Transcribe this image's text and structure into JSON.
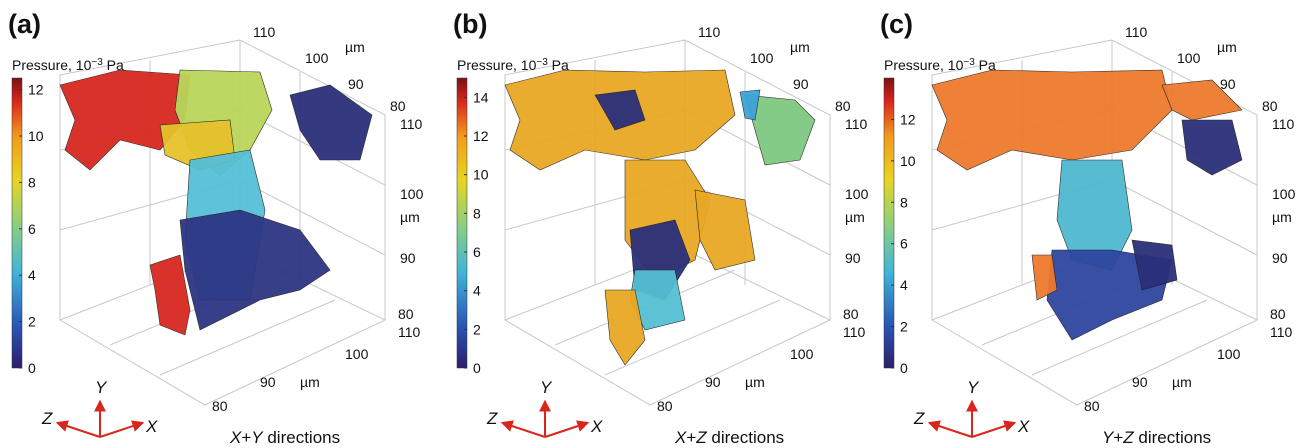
{
  "panels": [
    {
      "label": "(a)",
      "colorbar": {
        "title_parts": [
          "Pressure, 10",
          "−3",
          " Pa"
        ],
        "range": [
          0,
          12.5
        ],
        "ticks": [
          0,
          2,
          4,
          6,
          8,
          10,
          12
        ]
      },
      "box_ticks": {
        "back": [
          110,
          100,
          90,
          80
        ],
        "side": [
          110,
          100,
          90,
          80
        ],
        "front": [
          110,
          100,
          90,
          80
        ]
      },
      "unit": "µm",
      "triad": {
        "x": "X",
        "y": "Y",
        "z": "Z"
      },
      "caption_parts": [
        "X",
        "+",
        "Y",
        " directions"
      ]
    },
    {
      "label": "(b)",
      "colorbar": {
        "title_parts": [
          "Pressure, 10",
          "−3",
          " Pa"
        ],
        "range": [
          0,
          15
        ],
        "ticks": [
          0,
          2,
          4,
          6,
          8,
          10,
          12,
          14
        ]
      },
      "box_ticks": {
        "back": [
          110,
          100,
          90,
          80
        ],
        "side": [
          110,
          100,
          90,
          80
        ],
        "front": [
          110,
          100,
          90,
          80
        ]
      },
      "unit": "µm",
      "triad": {
        "x": "X",
        "y": "Y",
        "z": "Z"
      },
      "caption_parts": [
        "X",
        "+",
        "Z",
        " directions"
      ]
    },
    {
      "label": "(c)",
      "colorbar": {
        "title_parts": [
          "Pressure, 10",
          "−3",
          " Pa"
        ],
        "range": [
          0,
          14
        ],
        "ticks": [
          0,
          2,
          4,
          6,
          8,
          10,
          12
        ]
      },
      "box_ticks": {
        "back": [
          110,
          100,
          90,
          80
        ],
        "side": [
          110,
          100,
          90,
          80
        ],
        "front": [
          110,
          100,
          90,
          80
        ]
      },
      "unit": "µm",
      "triad": {
        "x": "X",
        "y": "Y",
        "z": "Z"
      },
      "caption_parts": [
        "Y",
        "+",
        "Z",
        " directions"
      ]
    }
  ]
}
